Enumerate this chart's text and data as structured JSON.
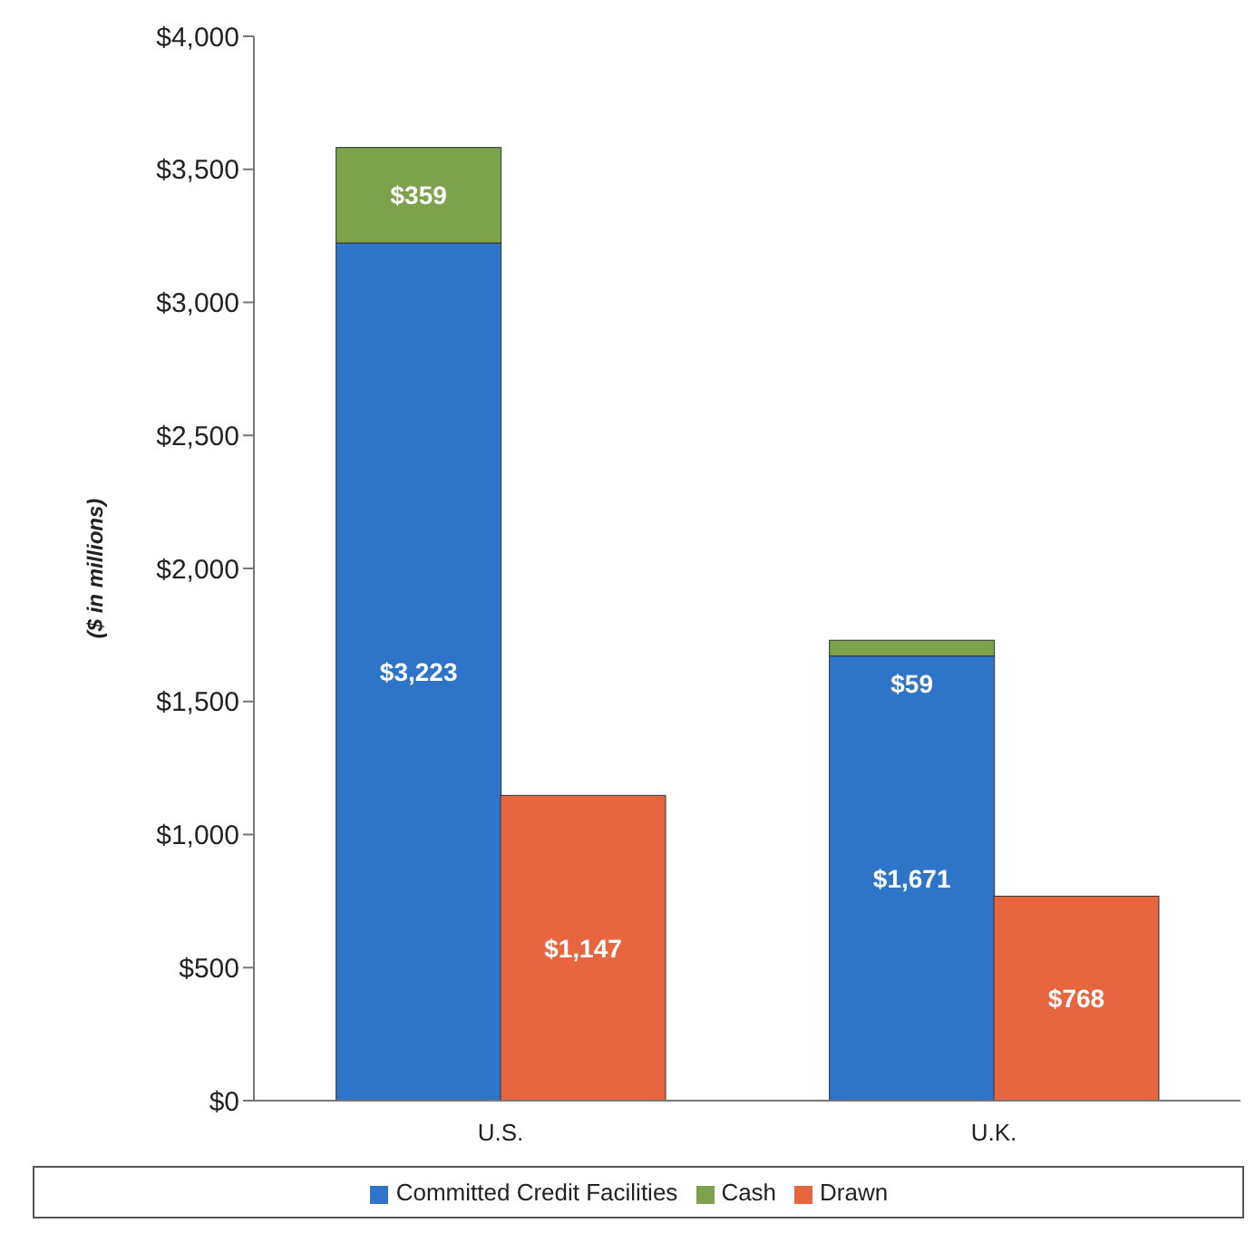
{
  "chart_data": {
    "type": "bar",
    "ylabel": "($ in millions)",
    "categories": [
      "U.S.",
      null,
      null,
      "U.K.",
      null
    ],
    "stacked": true,
    "series": [
      {
        "name": "Committed Credit Facilities",
        "color": "#2e74c9",
        "values": [
          3223,
          null,
          null,
          1671,
          null
        ],
        "value_labels": [
          "$3,223",
          null,
          null,
          "$1,671",
          null
        ]
      },
      {
        "name": "Cash",
        "color": "#7ea14b",
        "values": [
          359,
          null,
          null,
          59,
          null
        ],
        "value_labels": [
          "$359",
          null,
          null,
          "$59",
          null
        ]
      },
      {
        "name": "Drawn",
        "color": "#e8663f",
        "values": [
          null,
          1147,
          null,
          null,
          768
        ],
        "value_labels": [
          null,
          "$1,147",
          null,
          null,
          "$768"
        ]
      }
    ],
    "ylim": [
      0,
      4000
    ],
    "yticks": [
      {
        "value": 0,
        "label": "$0"
      },
      {
        "value": 500,
        "label": "$500"
      },
      {
        "value": 1000,
        "label": "$1,000"
      },
      {
        "value": 1500,
        "label": "$1,500"
      },
      {
        "value": 2000,
        "label": "$2,000"
      },
      {
        "value": 2500,
        "label": "$2,500"
      },
      {
        "value": 3000,
        "label": "$3,000"
      },
      {
        "value": 3500,
        "label": "$3,500"
      },
      {
        "value": 4000,
        "label": "$4,000"
      }
    ],
    "grid": false,
    "legend": "bottom"
  }
}
